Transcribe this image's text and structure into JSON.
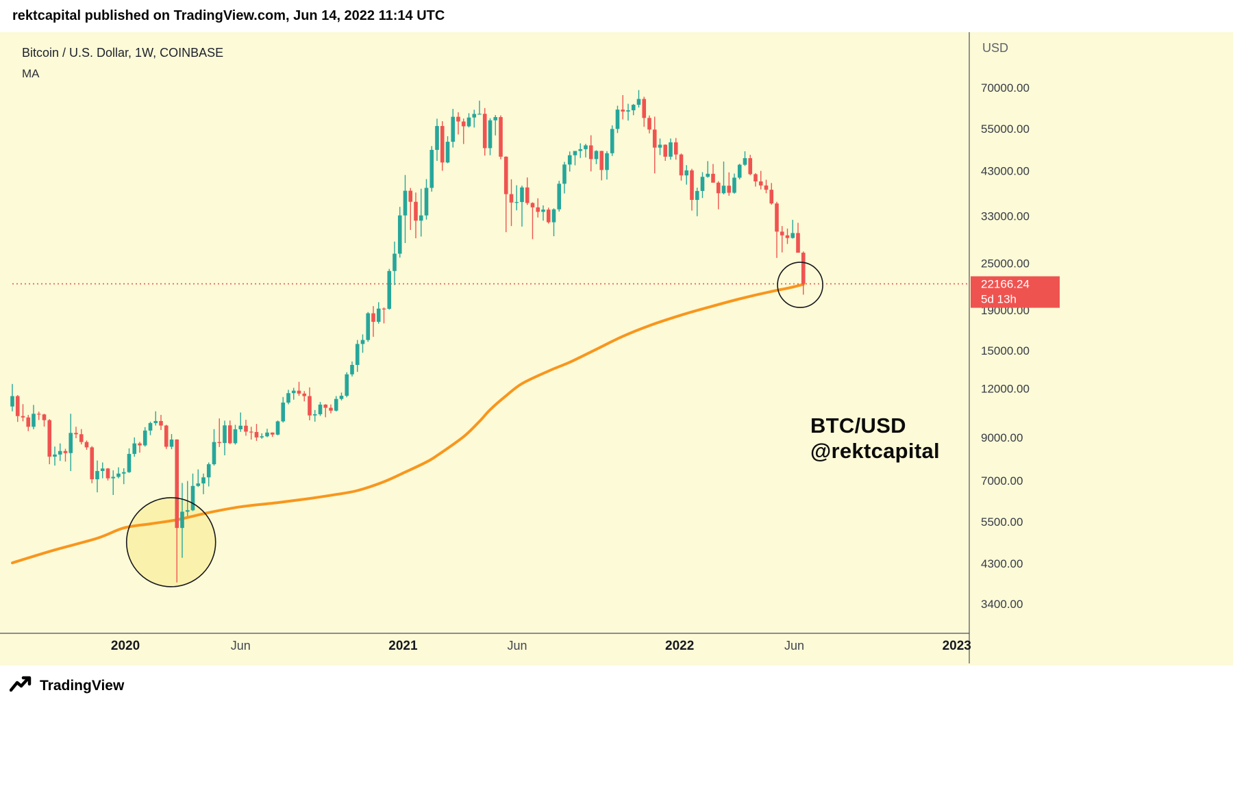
{
  "header": {
    "text": "rektcapital published on TradingView.com, Jun 14, 2022 11:14 UTC"
  },
  "chart": {
    "symbol_title": "Bitcoin / U.S. Dollar, 1W, COINBASE",
    "indicator_label": "MA",
    "currency_label": "USD",
    "watermark": {
      "line1": "BTC/USD",
      "line2": "@rektcapital"
    },
    "colors": {
      "background": "#FCFAD7",
      "up": "#26A69A",
      "down": "#EF5350",
      "ma": "#F8961D",
      "price_line": "#EF5350",
      "axis_line": "#4a4e59",
      "circle_stroke": "#15151c"
    }
  },
  "chart_data": {
    "type": "candlestick",
    "title": "Bitcoin / U.S. Dollar, 1W, COINBASE",
    "timeframe": "1W",
    "exchange": "COINBASE",
    "y_axis": {
      "scale": "log",
      "unit": "USD",
      "ticks": [
        70000,
        55000,
        43000,
        33000,
        25000,
        19000,
        15000,
        12000,
        9000,
        7000,
        5500,
        4300,
        3400
      ]
    },
    "x_axis_labels": [
      {
        "text": "2020",
        "week": 21.3,
        "bold": true
      },
      {
        "text": "Jun",
        "week": 43,
        "bold": false
      },
      {
        "text": "2021",
        "week": 73.6,
        "bold": true
      },
      {
        "text": "Jun",
        "week": 95.1,
        "bold": false
      },
      {
        "text": "2022",
        "week": 125.7,
        "bold": true
      },
      {
        "text": "Jun",
        "week": 147.3,
        "bold": false
      },
      {
        "text": "2023",
        "week": 177.9,
        "bold": true
      }
    ],
    "current_price": {
      "value": "22166.24",
      "countdown": "5d 13h"
    },
    "weekly_candles_ohlc": [
      [
        10800,
        12325,
        10500,
        11480
      ],
      [
        11480,
        11550,
        9870,
        10210
      ],
      [
        10210,
        10950,
        9900,
        10130
      ],
      [
        10130,
        10280,
        9350,
        9590
      ],
      [
        9590,
        10900,
        9450,
        10350
      ],
      [
        10350,
        10480,
        9980,
        10310
      ],
      [
        10310,
        10350,
        9600,
        9970
      ],
      [
        9970,
        10030,
        7700,
        8050
      ],
      [
        8050,
        8540,
        7640,
        8150
      ],
      [
        8150,
        8700,
        7850,
        8320
      ],
      [
        8320,
        8430,
        7820,
        8220
      ],
      [
        8220,
        10350,
        7400,
        9250
      ],
      [
        9250,
        9590,
        8970,
        9180
      ],
      [
        9180,
        9460,
        8650,
        8770
      ],
      [
        8770,
        8850,
        8380,
        8500
      ],
      [
        8500,
        8560,
        6890,
        7050
      ],
      [
        7050,
        7870,
        6530,
        7400
      ],
      [
        7400,
        7780,
        7090,
        7510
      ],
      [
        7510,
        7530,
        7000,
        7090
      ],
      [
        7090,
        7430,
        6430,
        7150
      ],
      [
        7150,
        7560,
        7090,
        7290
      ],
      [
        7290,
        7520,
        6850,
        7350
      ],
      [
        7350,
        8450,
        7320,
        8180
      ],
      [
        8180,
        9010,
        8050,
        8700
      ],
      [
        8700,
        8780,
        8240,
        8600
      ],
      [
        8600,
        9570,
        8540,
        9380
      ],
      [
        9380,
        9880,
        9130,
        9800
      ],
      [
        9800,
        10500,
        9660,
        9920
      ],
      [
        9920,
        10280,
        9410,
        9660
      ],
      [
        9660,
        9700,
        8420,
        8530
      ],
      [
        8530,
        9190,
        8410,
        8900
      ],
      [
        8900,
        8910,
        3850,
        5300
      ],
      [
        5300,
        6900,
        4450,
        5830
      ],
      [
        5830,
        6980,
        5680,
        5880
      ],
      [
        5880,
        7290,
        5850,
        6780
      ],
      [
        6780,
        7470,
        6740,
        6880
      ],
      [
        6880,
        7290,
        6460,
        7130
      ],
      [
        7130,
        7780,
        6760,
        7700
      ],
      [
        7700,
        9460,
        7640,
        8770
      ],
      [
        8770,
        10070,
        8520,
        8720
      ],
      [
        8720,
        9940,
        8115,
        9670
      ],
      [
        9670,
        9950,
        8660,
        8710
      ],
      [
        8710,
        9700,
        8640,
        9450
      ],
      [
        9450,
        10430,
        9310,
        9650
      ],
      [
        9650,
        9990,
        9100,
        9320
      ],
      [
        9320,
        9590,
        8900,
        9300
      ],
      [
        9300,
        9750,
        8830,
        9010
      ],
      [
        9010,
        9230,
        8940,
        9070
      ],
      [
        9070,
        9480,
        9020,
        9270
      ],
      [
        9270,
        9280,
        9040,
        9160
      ],
      [
        9160,
        9950,
        9120,
        9900
      ],
      [
        9900,
        11420,
        9830,
        11050
      ],
      [
        11050,
        11910,
        10940,
        11680
      ],
      [
        11680,
        12050,
        11240,
        11850
      ],
      [
        11850,
        12480,
        11500,
        11650
      ],
      [
        11650,
        11820,
        11130,
        11480
      ],
      [
        11480,
        12080,
        9960,
        10250
      ],
      [
        10250,
        10580,
        9880,
        10320
      ],
      [
        10320,
        11090,
        10220,
        10920
      ],
      [
        10920,
        10950,
        10140,
        10720
      ],
      [
        10720,
        10930,
        10380,
        10540
      ],
      [
        10540,
        11480,
        10490,
        11290
      ],
      [
        11290,
        11720,
        11190,
        11500
      ],
      [
        11500,
        13200,
        11400,
        13040
      ],
      [
        13040,
        14060,
        12880,
        13780
      ],
      [
        13780,
        15950,
        13230,
        15580
      ],
      [
        15580,
        16480,
        14800,
        15950
      ],
      [
        15950,
        18790,
        15780,
        18650
      ],
      [
        18650,
        19450,
        16250,
        17740
      ],
      [
        17740,
        19900,
        17550,
        19170
      ],
      [
        19170,
        19300,
        17580,
        19150
      ],
      [
        19150,
        24200,
        19050,
        23900
      ],
      [
        23900,
        28400,
        22000,
        26450
      ],
      [
        26450,
        34800,
        25850,
        33100
      ],
      [
        33100,
        41950,
        28150,
        38250
      ],
      [
        38250,
        38880,
        30400,
        35850
      ],
      [
        35850,
        37850,
        28950,
        32100
      ],
      [
        32100,
        38700,
        29250,
        33100
      ],
      [
        33100,
        40950,
        32300,
        38900
      ],
      [
        38900,
        49700,
        38050,
        48600
      ],
      [
        48600,
        58350,
        45570,
        55900
      ],
      [
        55900,
        57500,
        43000,
        45140
      ],
      [
        45140,
        52650,
        44950,
        50970
      ],
      [
        50970,
        61800,
        49270,
        59000
      ],
      [
        59000,
        60600,
        53200,
        57400
      ],
      [
        57400,
        58400,
        50300,
        55800
      ],
      [
        55800,
        60250,
        55450,
        58750
      ],
      [
        58750,
        61500,
        55400,
        60000
      ],
      [
        60000,
        64850,
        59900,
        60050
      ],
      [
        60050,
        62100,
        47000,
        49100
      ],
      [
        49100,
        58500,
        47100,
        57800
      ],
      [
        57800,
        59600,
        52900,
        58900
      ],
      [
        58900,
        59500,
        46000,
        46700
      ],
      [
        46700,
        46800,
        30000,
        37500
      ],
      [
        37500,
        40900,
        31100,
        35700
      ],
      [
        35700,
        39500,
        34100,
        35800
      ],
      [
        35800,
        39400,
        31000,
        39000
      ],
      [
        39000,
        41350,
        35200,
        35600
      ],
      [
        35600,
        35750,
        28800,
        34700
      ],
      [
        34700,
        36600,
        32700,
        33800
      ],
      [
        33800,
        35100,
        32100,
        34250
      ],
      [
        34250,
        34650,
        31550,
        31800
      ],
      [
        31800,
        34500,
        29300,
        34300
      ],
      [
        34300,
        40550,
        33850,
        39850
      ],
      [
        39850,
        45300,
        37650,
        44600
      ],
      [
        44600,
        48150,
        42800,
        47100
      ],
      [
        47100,
        48050,
        44400,
        48300
      ],
      [
        48300,
        50500,
        46350,
        48800
      ],
      [
        48800,
        50350,
        46500,
        49900
      ],
      [
        49900,
        52950,
        42850,
        46050
      ],
      [
        46050,
        48500,
        44700,
        48300
      ],
      [
        48300,
        48350,
        40650,
        43200
      ],
      [
        43200,
        48250,
        40850,
        47650
      ],
      [
        47650,
        56100,
        46900,
        54950
      ],
      [
        54950,
        62950,
        53650,
        61550
      ],
      [
        61550,
        67000,
        58100,
        60850
      ],
      [
        60850,
        63700,
        57700,
        61300
      ],
      [
        61300,
        63600,
        59550,
        63300
      ],
      [
        63300,
        69000,
        62300,
        65500
      ],
      [
        65500,
        66350,
        55650,
        58600
      ],
      [
        58600,
        59450,
        53550,
        54750
      ],
      [
        54750,
        59050,
        42350,
        49250
      ],
      [
        49250,
        51950,
        47150,
        50100
      ],
      [
        50100,
        50200,
        45580,
        46700
      ],
      [
        46700,
        51950,
        45900,
        50800
      ],
      [
        50800,
        52100,
        45900,
        47300
      ],
      [
        47300,
        47580,
        40600,
        41850
      ],
      [
        41850,
        44450,
        39650,
        43100
      ],
      [
        43100,
        43500,
        34050,
        36250
      ],
      [
        36250,
        38950,
        32950,
        38200
      ],
      [
        38200,
        42650,
        36650,
        41500
      ],
      [
        41500,
        45500,
        41300,
        42250
      ],
      [
        42250,
        44750,
        41650,
        40100
      ],
      [
        40100,
        40450,
        34300,
        37700
      ],
      [
        37700,
        45400,
        37450,
        39400
      ],
      [
        39400,
        42600,
        37150,
        37800
      ],
      [
        37800,
        42300,
        37600,
        41300
      ],
      [
        41300,
        44800,
        40900,
        44550
      ],
      [
        44550,
        48200,
        44250,
        46300
      ],
      [
        46300,
        47200,
        41900,
        42150
      ],
      [
        42150,
        42420,
        39200,
        40400
      ],
      [
        40400,
        42980,
        38550,
        39450
      ],
      [
        39450,
        40800,
        37700,
        38470
      ],
      [
        38470,
        40020,
        35250,
        35500
      ],
      [
        35500,
        35850,
        25800,
        30100
      ],
      [
        30100,
        31100,
        26650,
        29450
      ],
      [
        29450,
        30650,
        28000,
        29000
      ],
      [
        29000,
        32250,
        28900,
        29850
      ],
      [
        29850,
        31700,
        26700,
        26600
      ],
      [
        26600,
        26800,
        20800,
        22166
      ]
    ],
    "ma_anchor_points": [
      [
        0,
        4320
      ],
      [
        8,
        4660
      ],
      [
        16,
        4990
      ],
      [
        21,
        5300
      ],
      [
        26,
        5430
      ],
      [
        31,
        5560
      ],
      [
        37,
        5800
      ],
      [
        43,
        6000
      ],
      [
        50,
        6150
      ],
      [
        56,
        6300
      ],
      [
        61,
        6450
      ],
      [
        65,
        6600
      ],
      [
        70,
        6950
      ],
      [
        74,
        7350
      ],
      [
        78,
        7800
      ],
      [
        80,
        8100
      ],
      [
        85,
        9050
      ],
      [
        88,
        9900
      ],
      [
        90,
        10600
      ],
      [
        93,
        11500
      ],
      [
        96,
        12350
      ],
      [
        101,
        13300
      ],
      [
        105,
        14000
      ],
      [
        110,
        15100
      ],
      [
        115,
        16300
      ],
      [
        120,
        17350
      ],
      [
        126,
        18460
      ],
      [
        131,
        19300
      ],
      [
        137,
        20300
      ],
      [
        143,
        21200
      ],
      [
        146,
        21600
      ],
      [
        149,
        22100
      ]
    ],
    "annotations": {
      "circles": [
        {
          "week": 29.9,
          "price": 4875,
          "radius_px": 65,
          "fill": "rgba(248,234,138,0.55)"
        },
        {
          "week": 148.4,
          "price": 22030,
          "radius_px": 33,
          "fill": "none"
        }
      ],
      "watermark": [
        "BTC/USD",
        "@rektcapital"
      ]
    }
  },
  "footer": {
    "brand": "TradingView"
  }
}
